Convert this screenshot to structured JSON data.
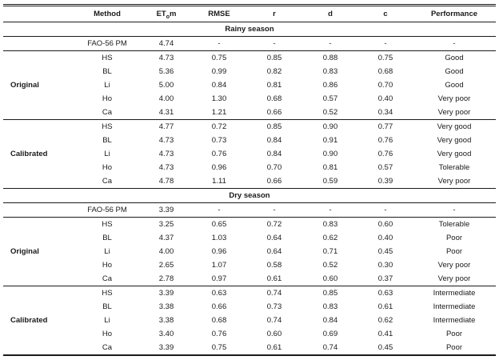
{
  "header": {
    "etom": {
      "pre": "ET",
      "sub": "o",
      "post": "m"
    },
    "method": "Method",
    "rmse": "RMSE",
    "r": "r",
    "d": "d",
    "c": "c",
    "performance": "Performance"
  },
  "sections": [
    {
      "title": "Rainy season",
      "reference": {
        "method": "FAO-56 PM",
        "etom": "4.74",
        "rmse": "-",
        "r": "-",
        "d": "-",
        "c": "-",
        "performance": "-"
      },
      "groups": [
        {
          "label": "Original",
          "rows": [
            {
              "method": "HS",
              "etom": "4.73",
              "rmse": "0.75",
              "r": "0.85",
              "d": "0.88",
              "c": "0.75",
              "performance": "Good"
            },
            {
              "method": "BL",
              "etom": "5.36",
              "rmse": "0.99",
              "r": "0.82",
              "d": "0.83",
              "c": "0.68",
              "performance": "Good"
            },
            {
              "method": "Li",
              "etom": "5.00",
              "rmse": "0.84",
              "r": "0.81",
              "d": "0.86",
              "c": "0.70",
              "performance": "Good"
            },
            {
              "method": "Ho",
              "etom": "4.00",
              "rmse": "1.30",
              "r": "0.68",
              "d": "0.57",
              "c": "0.40",
              "performance": "Very poor"
            },
            {
              "method": "Ca",
              "etom": "4.31",
              "rmse": "1.21",
              "r": "0.66",
              "d": "0.52",
              "c": "0.34",
              "performance": "Very poor"
            }
          ]
        },
        {
          "label": "Calibrated",
          "rows": [
            {
              "method": "HS",
              "etom": "4.77",
              "rmse": "0.72",
              "r": "0.85",
              "d": "0.90",
              "c": "0.77",
              "performance": "Very good"
            },
            {
              "method": "BL",
              "etom": "4.73",
              "rmse": "0.73",
              "r": "0.84",
              "d": "0.91",
              "c": "0.76",
              "performance": "Very good"
            },
            {
              "method": "Li",
              "etom": "4.73",
              "rmse": "0.76",
              "r": "0.84",
              "d": "0.90",
              "c": "0.76",
              "performance": "Very good"
            },
            {
              "method": "Ho",
              "etom": "4.73",
              "rmse": "0.96",
              "r": "0.70",
              "d": "0.81",
              "c": "0.57",
              "performance": "Tolerable"
            },
            {
              "method": "Ca",
              "etom": "4.78",
              "rmse": "1.11",
              "r": "0.66",
              "d": "0.59",
              "c": "0.39",
              "performance": "Very poor"
            }
          ]
        }
      ]
    },
    {
      "title": "Dry season",
      "reference": {
        "method": "FAO-56 PM",
        "etom": "3.39",
        "rmse": "-",
        "r": "-",
        "d": "-",
        "c": "-",
        "performance": "-"
      },
      "groups": [
        {
          "label": "Original",
          "rows": [
            {
              "method": "HS",
              "etom": "3.25",
              "rmse": "0.65",
              "r": "0.72",
              "d": "0.83",
              "c": "0.60",
              "performance": "Tolerable"
            },
            {
              "method": "BL",
              "etom": "4.37",
              "rmse": "1.03",
              "r": "0.64",
              "d": "0.62",
              "c": "0.40",
              "performance": "Poor"
            },
            {
              "method": "Li",
              "etom": "4.00",
              "rmse": "0.96",
              "r": "0.64",
              "d": "0.71",
              "c": "0.45",
              "performance": "Poor"
            },
            {
              "method": "Ho",
              "etom": "2.65",
              "rmse": "1.07",
              "r": "0.58",
              "d": "0.52",
              "c": "0.30",
              "performance": "Very poor"
            },
            {
              "method": "Ca",
              "etom": "2.78",
              "rmse": "0.97",
              "r": "0.61",
              "d": "0.60",
              "c": "0.37",
              "performance": "Very poor"
            }
          ]
        },
        {
          "label": "Calibrated",
          "rows": [
            {
              "method": "HS",
              "etom": "3.39",
              "rmse": "0.63",
              "r": "0.74",
              "d": "0.85",
              "c": "0.63",
              "performance": "Intermediate"
            },
            {
              "method": "BL",
              "etom": "3.38",
              "rmse": "0.66",
              "r": "0.73",
              "d": "0.83",
              "c": "0.61",
              "performance": "Intermediate"
            },
            {
              "method": "Li",
              "etom": "3.38",
              "rmse": "0.68",
              "r": "0.74",
              "d": "0.84",
              "c": "0.62",
              "performance": "Intermediate"
            },
            {
              "method": "Ho",
              "etom": "3.40",
              "rmse": "0.76",
              "r": "0.60",
              "d": "0.69",
              "c": "0.41",
              "performance": "Poor"
            },
            {
              "method": "Ca",
              "etom": "3.39",
              "rmse": "0.75",
              "r": "0.61",
              "d": "0.74",
              "c": "0.45",
              "performance": "Poor"
            }
          ]
        }
      ]
    }
  ]
}
